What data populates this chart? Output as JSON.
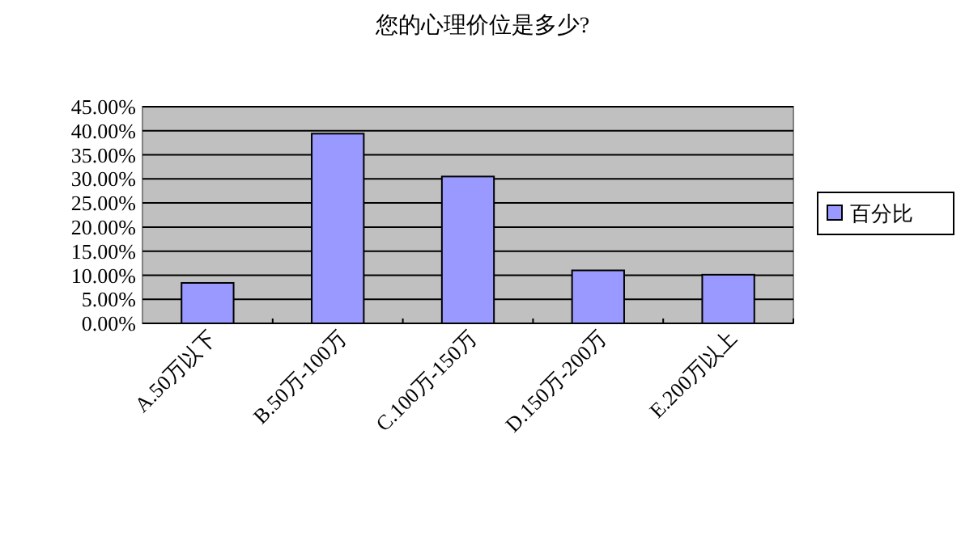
{
  "chart_data": {
    "type": "bar",
    "title": "您的心理价位是多少?",
    "categories": [
      "A.50万以下",
      "B.50万-100万",
      "C.100万-150万",
      "D.150万-200万",
      "E.200万以上"
    ],
    "series": [
      {
        "name": "百分比",
        "color": "#9999ff",
        "values": [
          8.4,
          39.4,
          30.5,
          11.0,
          10.1
        ]
      }
    ],
    "ylim": [
      0,
      45
    ],
    "yticks": [
      {
        "value": 0,
        "label": "0.00%"
      },
      {
        "value": 5,
        "label": "5.00%"
      },
      {
        "value": 10,
        "label": "10.00%"
      },
      {
        "value": 15,
        "label": "15.00%"
      },
      {
        "value": 20,
        "label": "20.00%"
      },
      {
        "value": 25,
        "label": "25.00%"
      },
      {
        "value": 30,
        "label": "30.00%"
      },
      {
        "value": 35,
        "label": "35.00%"
      },
      {
        "value": 40,
        "label": "40.00%"
      },
      {
        "value": 45,
        "label": "45.00%"
      }
    ],
    "grid": "y",
    "legend": "right"
  }
}
